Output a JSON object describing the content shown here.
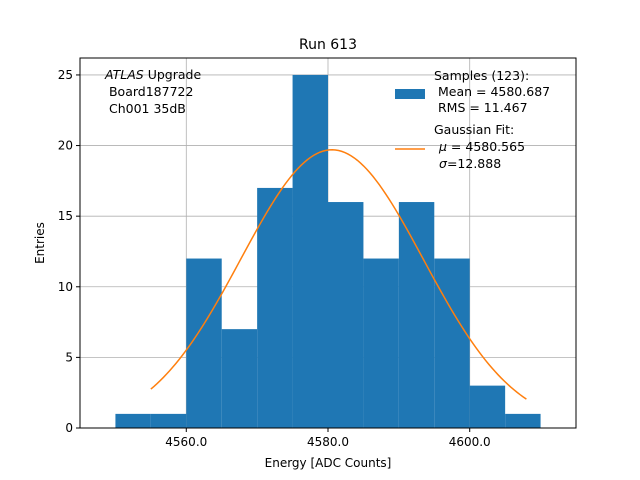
{
  "chart_data": {
    "type": "bar",
    "title": "Run 613",
    "xlabel": "Energy [ADC Counts]",
    "ylabel": "Entries",
    "xlim": [
      4545,
      4615
    ],
    "ylim": [
      0,
      26.2
    ],
    "xticks": [
      4560.0,
      4580.0,
      4600.0
    ],
    "xtick_labels": [
      "4560.0",
      "4580.0",
      "4600.0"
    ],
    "yticks": [
      0,
      5,
      10,
      15,
      20,
      25
    ],
    "grid": true,
    "bin_edges": [
      4550,
      4555,
      4560,
      4565,
      4570,
      4575,
      4580,
      4585,
      4590,
      4595,
      4600,
      4605,
      4610
    ],
    "counts": [
      1,
      1,
      12,
      7,
      17,
      25,
      16,
      12,
      16,
      12,
      3,
      1
    ],
    "bar_color": "#1f77b4",
    "fit": {
      "type": "gaussian",
      "amplitude": 19.7,
      "mu": 4580.565,
      "sigma": 12.888,
      "x_range": [
        4555,
        4608
      ],
      "color": "#ff7f0e"
    },
    "annotation": {
      "line1_italic": "ATLAS",
      "line1_rest": " Upgrade",
      "line2": " Board187722",
      "line3": " Ch001 35dB"
    },
    "legend": {
      "location": "top-right",
      "samples_label": "Samples (123):",
      "samples_mean": " Mean = 4580.687",
      "samples_rms": " RMS = 11.467",
      "fit_label": "Gaussian Fit:",
      "fit_mu_sym": "μ",
      "fit_mu_val": " = 4580.565",
      "fit_sigma_sym": "σ",
      "fit_sigma_val": "=12.888"
    }
  }
}
